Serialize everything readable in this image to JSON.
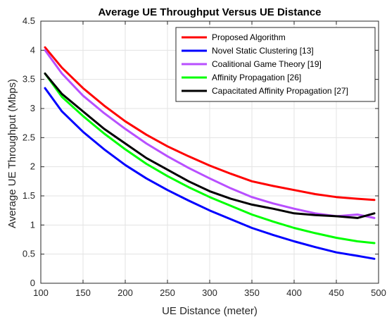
{
  "chart_data": {
    "type": "line",
    "title": "Average UE Throughput Versus UE Distance",
    "xlabel": "UE Distance (meter)",
    "ylabel": "Average UE Throughput (Mbps)",
    "xlim": [
      100,
      500
    ],
    "ylim": [
      0,
      4.5
    ],
    "xticks": [
      100,
      150,
      200,
      250,
      300,
      350,
      400,
      450,
      500
    ],
    "yticks": [
      0,
      0.5,
      1,
      1.5,
      2,
      2.5,
      3,
      3.5,
      4,
      4.5
    ],
    "xtick_labels": [
      "100",
      "150",
      "200",
      "250",
      "300",
      "350",
      "400",
      "450",
      "500"
    ],
    "ytick_labels": [
      "0",
      "0.5",
      "1",
      "1.5",
      "2",
      "2.5",
      "3",
      "3.5",
      "4",
      "4.5"
    ],
    "grid": true,
    "legend_position": "top-right",
    "x": [
      105,
      125,
      150,
      175,
      200,
      225,
      250,
      275,
      300,
      325,
      350,
      375,
      400,
      425,
      450,
      475,
      495
    ],
    "series": [
      {
        "name": "Proposed Algorithm",
        "color": "#ff0000",
        "values": [
          4.05,
          3.7,
          3.35,
          3.05,
          2.78,
          2.55,
          2.35,
          2.18,
          2.02,
          1.88,
          1.75,
          1.67,
          1.6,
          1.53,
          1.48,
          1.45,
          1.43
        ]
      },
      {
        "name": "Novel Static Clustering [13]",
        "color": "#0000ff",
        "values": [
          3.35,
          2.95,
          2.6,
          2.3,
          2.03,
          1.8,
          1.6,
          1.42,
          1.25,
          1.1,
          0.95,
          0.83,
          0.72,
          0.62,
          0.53,
          0.47,
          0.42
        ]
      },
      {
        "name": "Coalitional Game Theory [19]",
        "color": "#b84fff",
        "values": [
          4.0,
          3.6,
          3.22,
          2.92,
          2.65,
          2.4,
          2.18,
          1.98,
          1.8,
          1.63,
          1.48,
          1.37,
          1.28,
          1.2,
          1.15,
          1.18,
          1.12
        ]
      },
      {
        "name": "Affinity Propagation [26]",
        "color": "#00ff00",
        "values": [
          3.6,
          3.2,
          2.87,
          2.57,
          2.3,
          2.05,
          1.84,
          1.65,
          1.48,
          1.33,
          1.18,
          1.06,
          0.95,
          0.86,
          0.78,
          0.72,
          0.69
        ]
      },
      {
        "name": "Capacitated Affinity Propagation [27]",
        "color": "#000000",
        "values": [
          3.6,
          3.25,
          2.95,
          2.65,
          2.4,
          2.15,
          1.95,
          1.75,
          1.58,
          1.45,
          1.35,
          1.28,
          1.2,
          1.17,
          1.15,
          1.12,
          1.2
        ]
      }
    ]
  }
}
